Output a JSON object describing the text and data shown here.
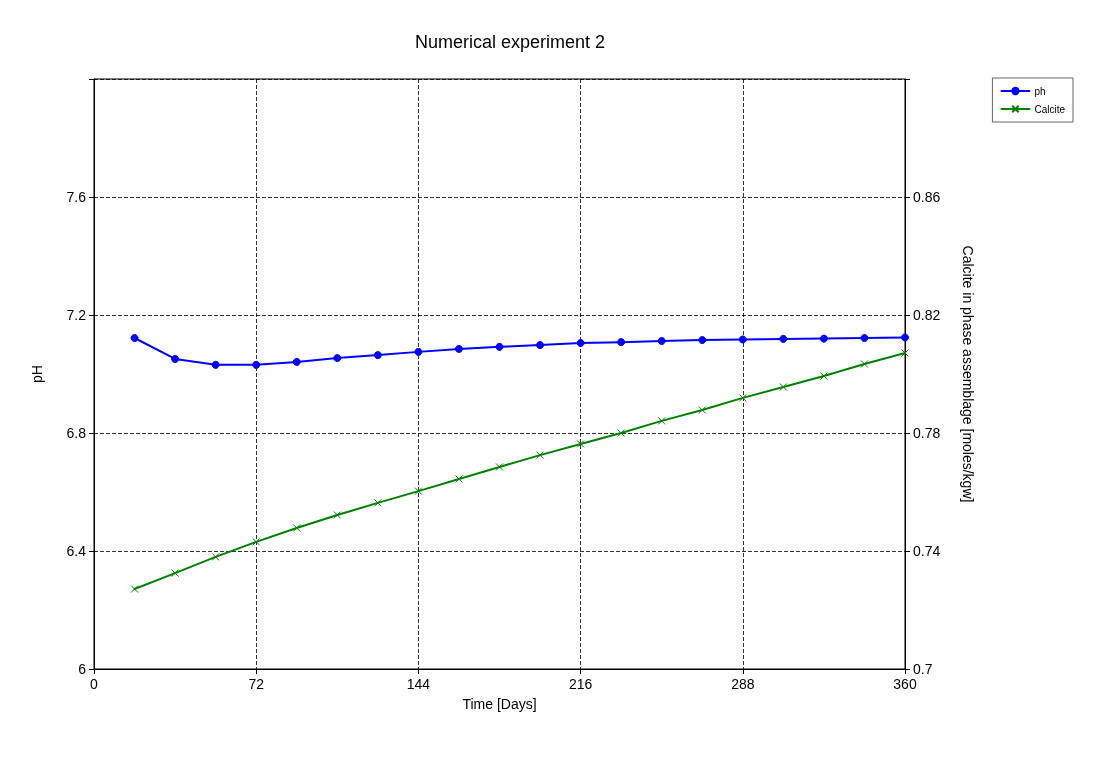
{
  "chart_data": {
    "type": "line",
    "title": "Numerical experiment 2",
    "xlabel": "Time [Days]",
    "ylabel": "pH",
    "y2label": "Calcite in phase assemblage [moles/kgw]",
    "x": [
      18,
      36,
      54,
      72,
      90,
      108,
      126,
      144,
      162,
      180,
      198,
      216,
      234,
      252,
      270,
      288,
      306,
      324,
      342,
      360
    ],
    "series": [
      {
        "name": "ph",
        "color": "#0000ff",
        "marker": "circle",
        "values": [
          7.122,
          7.051,
          7.031,
          7.031,
          7.041,
          7.054,
          7.064,
          7.075,
          7.085,
          7.092,
          7.098,
          7.105,
          7.108,
          7.112,
          7.115,
          7.117,
          7.119,
          7.12,
          7.122,
          7.124
        ]
      },
      {
        "name": "Calcite",
        "color": "#008000",
        "marker": "cross",
        "axis": "y2",
        "values": [
          0.7271,
          0.7325,
          0.738,
          0.7431,
          0.7478,
          0.7522,
          0.7563,
          0.7603,
          0.7644,
          0.7685,
          0.7725,
          0.7763,
          0.78,
          0.7841,
          0.7878,
          0.7919,
          0.7956,
          0.7993,
          0.8034,
          0.8071
        ]
      }
    ],
    "xlim": [
      0,
      360
    ],
    "xticks": [
      0,
      72,
      144,
      216,
      288,
      360
    ],
    "ylim": [
      6,
      8
    ],
    "yticks": [
      6,
      6.4,
      6.8,
      7.2,
      7.6,
      {
        "value": 8,
        "label": null
      }
    ],
    "y2lim": [
      0.7,
      0.9
    ],
    "y2ticks": [
      0.7,
      0.74,
      0.78,
      0.82,
      0.86,
      {
        "value": 0.9,
        "label": null
      }
    ],
    "grid": true,
    "legend": "top right",
    "line_style": "solid"
  }
}
